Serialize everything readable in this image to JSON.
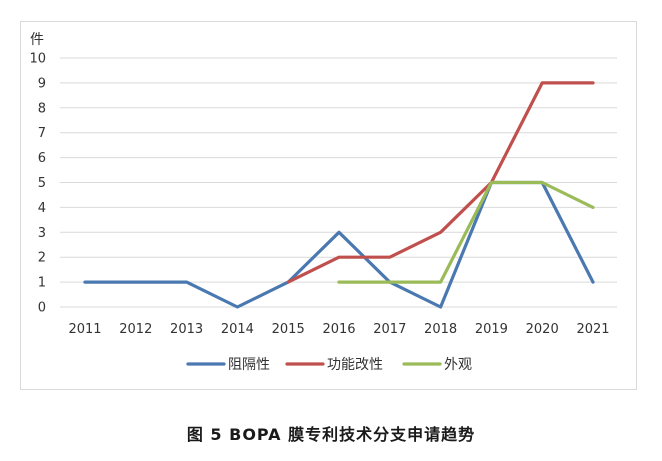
{
  "caption": "图 5  BOPA 膜专利技术分支申请趋势",
  "chart_data": {
    "type": "line",
    "title": "",
    "xlabel": "",
    "ylabel": "件",
    "ylim": [
      0,
      10
    ],
    "yticks": [
      0,
      1,
      2,
      3,
      4,
      5,
      6,
      7,
      8,
      9,
      10
    ],
    "grid": true,
    "legend_position": "bottom",
    "categories": [
      "2011",
      "2012",
      "2013",
      "2014",
      "2015",
      "2016",
      "2017",
      "2018",
      "2019",
      "2020",
      "2021"
    ],
    "series": [
      {
        "name": "阻隔性",
        "color": "#4a78b0",
        "values": [
          1,
          1,
          1,
          0,
          1,
          3,
          1,
          0,
          5,
          5,
          1
        ]
      },
      {
        "name": "功能改性",
        "color": "#c0504d",
        "values": [
          null,
          null,
          null,
          null,
          1,
          2,
          2,
          3,
          5,
          9,
          9
        ]
      },
      {
        "name": "外观",
        "color": "#9bbb59",
        "values": [
          null,
          null,
          null,
          null,
          null,
          1,
          1,
          1,
          5,
          5,
          4
        ]
      }
    ]
  }
}
